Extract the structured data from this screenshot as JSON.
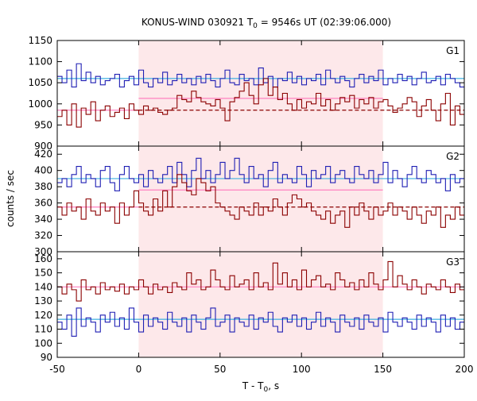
{
  "chart_data": {
    "type": "line",
    "step": true,
    "title_main": "KONUS-WIND 030921 T",
    "title_sub": "0",
    "title_rest": " = 9546s UT (02:39:06.000)",
    "xlabel_main": "T - T",
    "xlabel_sub": "0",
    "xlabel_rest": ", s",
    "ylabel": "counts / sec",
    "xlim": [
      -50,
      200
    ],
    "x_ticks": [
      "-50",
      "0",
      "50",
      "100",
      "150",
      "200"
    ],
    "shaded_interval": [
      0,
      150
    ],
    "colors": {
      "dark_red": "#8b0000",
      "blue": "#1f1fb4",
      "pink": "#ff80c0",
      "light_blue": "#3fb0e0",
      "shade": "#fde8ea"
    },
    "panels": [
      {
        "label": "G1",
        "ylim": [
          900,
          1150
        ],
        "y_ticks": [
          900,
          950,
          1000,
          1050,
          1100,
          1150
        ],
        "bin_start": -50,
        "bin_width": 2.944,
        "series": [
          {
            "color": "blue",
            "values": [
              1065,
              1050,
              1080,
              1040,
              1095,
              1055,
              1075,
              1050,
              1065,
              1045,
              1055,
              1060,
              1070,
              1040,
              1055,
              1065,
              1045,
              1080,
              1050,
              1040,
              1060,
              1050,
              1075,
              1045,
              1055,
              1070,
              1050,
              1060,
              1045,
              1065,
              1050,
              1070,
              1055,
              1040,
              1060,
              1080,
              1050,
              1045,
              1070,
              1055,
              1060,
              1045,
              1085,
              1050,
              1065,
              1040,
              1060,
              1055,
              1075,
              1050,
              1065,
              1045,
              1060,
              1055,
              1070,
              1045,
              1080,
              1060,
              1050,
              1065,
              1055,
              1040,
              1060,
              1070,
              1050,
              1065,
              1055,
              1080,
              1045,
              1060,
              1050,
              1070,
              1055,
              1065,
              1045,
              1060,
              1075,
              1050,
              1055,
              1065,
              1045,
              1070,
              1060,
              1050,
              1040,
              1065
            ]
          },
          {
            "color": "dark_red",
            "values": [
              970,
              985,
              950,
              1000,
              945,
              990,
              975,
              1005,
              960,
              985,
              995,
              970,
              980,
              990,
              965,
              1000,
              985,
              975,
              995,
              985,
              990,
              980,
              975,
              985,
              990,
              1020,
              1010,
              1005,
              1030,
              1015,
              1005,
              1000,
              995,
              1010,
              990,
              960,
              1005,
              1015,
              1030,
              1050,
              1020,
              1000,
              1045,
              1060,
              1020,
              1040,
              1010,
              1025,
              1000,
              985,
              1010,
              990,
              1005,
              1000,
              1025,
              995,
              1010,
              985,
              1000,
              1015,
              1005,
              1020,
              990,
              1010,
              1000,
              1015,
              990,
              1005,
              1010,
              995,
              980,
              990,
              1000,
              1015,
              1005,
              970,
              995,
              1010,
              985,
              960,
              1000,
              1025,
              950,
              995,
              975,
              1000
            ]
          }
        ],
        "fit_lines": [
          {
            "color": "light_blue",
            "style": "solid",
            "segments": [
              {
                "x": [
                  -50,
                  200
                ],
                "y": 1060
              }
            ]
          },
          {
            "color": "pink",
            "style": "solid",
            "segments": [
              {
                "x": [
                  -50,
                  0
                ],
                "y": 985
              },
              {
                "x": [
                  0,
                  150
                ],
                "y": 1013
              }
            ]
          },
          {
            "color": "dark_red",
            "style": "dashed",
            "segments": [
              {
                "x": [
                  0,
                  200
                ],
                "y": 985
              }
            ]
          }
        ]
      },
      {
        "label": "G2",
        "ylim": [
          300,
          430
        ],
        "y_ticks": [
          300,
          320,
          340,
          360,
          380,
          400,
          420
        ],
        "bin_start": -50,
        "bin_width": 2.944,
        "series": [
          {
            "color": "blue",
            "values": [
              385,
              390,
              380,
              395,
              405,
              385,
              395,
              390,
              380,
              400,
              405,
              385,
              375,
              395,
              405,
              390,
              385,
              395,
              380,
              400,
              390,
              385,
              395,
              405,
              385,
              410,
              395,
              380,
              400,
              415,
              390,
              400,
              385,
              395,
              410,
              390,
              400,
              415,
              395,
              385,
              405,
              390,
              395,
              380,
              400,
              410,
              385,
              395,
              390,
              385,
              405,
              395,
              380,
              400,
              390,
              395,
              405,
              385,
              395,
              400,
              390,
              385,
              405,
              395,
              390,
              400,
              385,
              395,
              410,
              385,
              400,
              390,
              380,
              395,
              405,
              390,
              385,
              400,
              395,
              385,
              390,
              375,
              395,
              385,
              390,
              380
            ]
          },
          {
            "color": "dark_red",
            "values": [
              355,
              345,
              360,
              350,
              355,
              340,
              365,
              350,
              345,
              360,
              350,
              355,
              335,
              360,
              345,
              355,
              375,
              360,
              350,
              345,
              365,
              350,
              375,
              355,
              380,
              395,
              385,
              375,
              370,
              390,
              385,
              375,
              380,
              360,
              355,
              350,
              345,
              340,
              355,
              350,
              345,
              360,
              345,
              355,
              350,
              365,
              355,
              345,
              360,
              370,
              365,
              355,
              360,
              350,
              345,
              340,
              350,
              335,
              345,
              350,
              330,
              355,
              345,
              360,
              350,
              340,
              355,
              345,
              350,
              360,
              345,
              355,
              350,
              340,
              355,
              345,
              335,
              350,
              345,
              355,
              330,
              345,
              340,
              355,
              345,
              350
            ]
          }
        ],
        "fit_lines": [
          {
            "color": "light_blue",
            "style": "solid",
            "segments": [
              {
                "x": [
                  -50,
                  200
                ],
                "y": 390
              }
            ]
          },
          {
            "color": "pink",
            "style": "solid",
            "segments": [
              {
                "x": [
                  -50,
                  0
                ],
                "y": 355
              },
              {
                "x": [
                  0,
                  150
                ],
                "y": 376
              }
            ]
          },
          {
            "color": "dark_red",
            "style": "dashed",
            "segments": [
              {
                "x": [
                  0,
                  200
                ],
                "y": 355
              }
            ]
          }
        ]
      },
      {
        "label": "G3",
        "ylim": [
          90,
          165
        ],
        "y_ticks": [
          90,
          100,
          110,
          120,
          130,
          140,
          150,
          160
        ],
        "bin_start": -50,
        "bin_width": 2.944,
        "series": [
          {
            "color": "dark_red",
            "values": [
              140,
              135,
              142,
              138,
              130,
              145,
              138,
              140,
              135,
              143,
              138,
              140,
              137,
              142,
              135,
              140,
              138,
              145,
              140,
              135,
              142,
              138,
              140,
              136,
              143,
              140,
              138,
              150,
              142,
              145,
              138,
              140,
              152,
              145,
              140,
              138,
              148,
              140,
              142,
              145,
              138,
              150,
              140,
              143,
              138,
              157,
              142,
              150,
              140,
              145,
              138,
              152,
              140,
              145,
              148,
              140,
              142,
              138,
              150,
              145,
              140,
              143,
              138,
              145,
              140,
              150,
              142,
              138,
              145,
              158,
              140,
              148,
              142,
              138,
              145,
              140,
              135,
              142,
              140,
              138,
              145,
              140,
              136,
              142,
              138,
              140
            ]
          },
          {
            "color": "blue",
            "values": [
              115,
              110,
              120,
              105,
              125,
              112,
              118,
              115,
              108,
              120,
              115,
              122,
              112,
              118,
              110,
              125,
              115,
              108,
              120,
              112,
              118,
              115,
              110,
              122,
              115,
              112,
              118,
              108,
              120,
              115,
              110,
              118,
              125,
              112,
              115,
              120,
              108,
              118,
              115,
              112,
              120,
              110,
              118,
              115,
              122,
              112,
              108,
              118,
              115,
              120,
              112,
              118,
              110,
              115,
              122,
              112,
              118,
              115,
              108,
              120,
              115,
              112,
              118,
              110,
              120,
              115,
              112,
              118,
              108,
              122,
              115,
              112,
              118,
              115,
              110,
              120,
              112,
              118,
              115,
              108,
              120,
              112,
              118,
              110,
              115,
              112
            ]
          }
        ],
        "fit_lines": [
          {
            "color": "pink",
            "style": "solid",
            "segments": [
              {
                "x": [
                  -50,
                  200
                ],
                "y": 140
              }
            ]
          },
          {
            "color": "light_blue",
            "style": "solid",
            "segments": [
              {
                "x": [
                  -50,
                  200
                ],
                "y": 117
              }
            ]
          }
        ]
      }
    ]
  }
}
